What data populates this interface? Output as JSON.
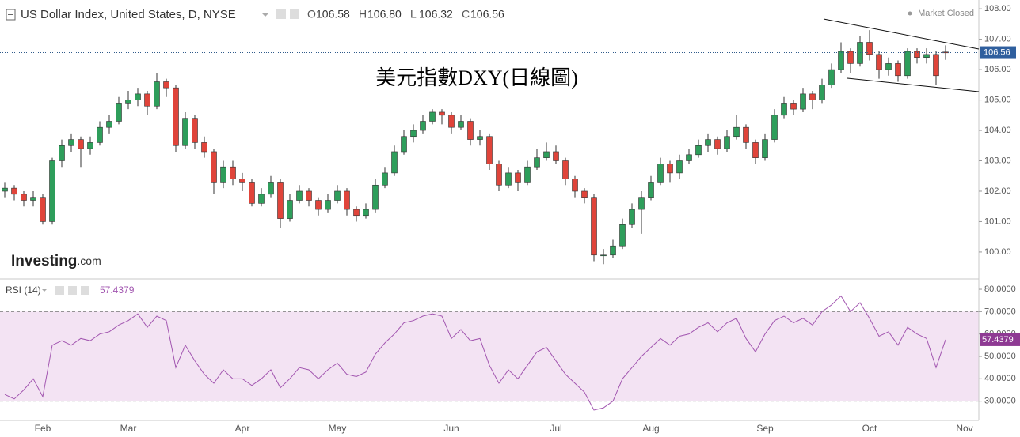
{
  "chart_data": [
    {
      "type": "candlestick",
      "title": "US Dollar Index, United States, D, NYSE",
      "ohlc_labels": [
        "O",
        "H",
        "L",
        "C"
      ],
      "ohlc_values": [
        "106.58",
        "106.80",
        "106.32",
        "106.56"
      ],
      "status": "Market Closed",
      "logo": [
        "Investing",
        ".com"
      ],
      "annotation": "美元指數DXY(日線圖)",
      "up_color": "#2e9e5b",
      "down_color": "#e0443a",
      "ylim": [
        99.14,
        108.29
      ],
      "yticks": [
        {
          "value": 100,
          "label": "100.00"
        },
        {
          "value": 101,
          "label": "101.00"
        },
        {
          "value": 102,
          "label": "102.00"
        },
        {
          "value": 103,
          "label": "103.00"
        },
        {
          "value": 104,
          "label": "104.00"
        },
        {
          "value": 105,
          "label": "105.00"
        },
        {
          "value": 106,
          "label": "106.00"
        },
        {
          "value": 107,
          "label": "107.00"
        },
        {
          "value": 108,
          "label": "108.00"
        }
      ],
      "last_price": {
        "value": 106.56,
        "label": "106.56"
      },
      "open": [
        102.0,
        102.1,
        101.9,
        101.7,
        101.8,
        101.0,
        103.0,
        103.5,
        103.7,
        103.4,
        103.6,
        104.1,
        104.3,
        104.9,
        105.0,
        105.2,
        104.8,
        105.6,
        105.4,
        103.5,
        104.4,
        103.6,
        103.3,
        102.3,
        102.8,
        102.4,
        102.3,
        101.6,
        101.9,
        102.3,
        101.1,
        101.7,
        102.0,
        101.7,
        101.4,
        101.7,
        102.0,
        101.4,
        101.2,
        101.4,
        102.2,
        102.6,
        103.3,
        103.8,
        104.0,
        104.3,
        104.6,
        104.5,
        104.1,
        104.3,
        103.7,
        103.8,
        102.9,
        102.2,
        102.6,
        102.3,
        102.8,
        103.1,
        103.3,
        103.0,
        102.4,
        102.0,
        101.8,
        99.9,
        99.9,
        100.2,
        100.9,
        101.4,
        101.8,
        102.3,
        102.9,
        102.6,
        103.0,
        103.2,
        103.5,
        103.7,
        103.4,
        103.8,
        104.1,
        103.6,
        103.1,
        103.7,
        104.5,
        104.9,
        104.7,
        105.2,
        105.0,
        105.5,
        106.0,
        106.6,
        106.2,
        106.9,
        106.5,
        106.0,
        106.2,
        105.8,
        106.6,
        106.4,
        106.5,
        106.58,
        null,
        null,
        null
      ],
      "high": [
        102.3,
        102.2,
        102.0,
        102.0,
        101.9,
        103.1,
        103.7,
        103.9,
        103.8,
        103.8,
        104.3,
        104.5,
        105.1,
        105.3,
        105.4,
        105.3,
        105.9,
        105.7,
        105.5,
        104.6,
        104.5,
        103.8,
        103.4,
        103.0,
        103.0,
        102.6,
        102.4,
        102.1,
        102.5,
        102.4,
        101.9,
        102.2,
        102.1,
        101.8,
        101.9,
        102.2,
        102.1,
        101.5,
        101.6,
        102.4,
        102.8,
        103.5,
        104.0,
        104.2,
        104.5,
        104.7,
        104.7,
        104.6,
        104.5,
        104.4,
        104.0,
        103.9,
        103.0,
        102.8,
        102.7,
        103.0,
        103.4,
        103.6,
        103.5,
        103.1,
        102.5,
        102.1,
        101.9,
        100.1,
        100.4,
        101.1,
        101.6,
        102.0,
        102.5,
        103.1,
        103.0,
        103.2,
        103.4,
        103.7,
        103.9,
        103.8,
        104.0,
        104.5,
        104.2,
        103.7,
        103.9,
        104.7,
        105.1,
        105.0,
        105.4,
        105.3,
        105.7,
        106.2,
        106.9,
        106.7,
        107.1,
        107.3,
        106.6,
        106.4,
        106.3,
        106.7,
        106.7,
        106.7,
        106.6,
        106.8,
        null,
        null,
        null
      ],
      "low": [
        101.8,
        101.7,
        101.5,
        101.5,
        100.9,
        100.9,
        102.8,
        103.3,
        102.8,
        103.2,
        103.5,
        103.9,
        104.2,
        104.7,
        104.8,
        104.5,
        104.7,
        105.1,
        103.3,
        103.4,
        103.4,
        103.1,
        101.9,
        102.1,
        102.2,
        102.0,
        101.5,
        101.5,
        101.8,
        100.8,
        101.0,
        101.6,
        101.5,
        101.2,
        101.3,
        101.6,
        101.2,
        101.0,
        101.1,
        101.3,
        102.1,
        102.5,
        103.2,
        103.6,
        103.9,
        104.2,
        104.2,
        103.9,
        104.0,
        103.5,
        103.5,
        102.7,
        102.0,
        102.1,
        102.0,
        102.2,
        102.7,
        103.0,
        102.9,
        102.2,
        101.8,
        101.6,
        99.7,
        99.6,
        99.8,
        100.1,
        100.8,
        100.6,
        101.7,
        102.2,
        102.3,
        102.4,
        102.9,
        103.1,
        103.3,
        103.2,
        103.3,
        103.7,
        103.4,
        102.9,
        103.0,
        103.6,
        104.4,
        104.5,
        104.6,
        104.7,
        104.9,
        105.4,
        105.9,
        105.9,
        106.1,
        106.3,
        105.7,
        105.8,
        105.6,
        105.7,
        106.2,
        106.2,
        105.5,
        106.32,
        null,
        null,
        null
      ],
      "close": [
        102.1,
        101.9,
        101.7,
        101.8,
        101.0,
        103.0,
        103.5,
        103.7,
        103.4,
        103.6,
        104.1,
        104.3,
        104.9,
        105.0,
        105.2,
        104.8,
        105.6,
        105.4,
        103.5,
        104.4,
        103.6,
        103.3,
        102.3,
        102.8,
        102.4,
        102.3,
        101.6,
        101.9,
        102.3,
        101.1,
        101.7,
        102.0,
        101.7,
        101.4,
        101.7,
        102.0,
        101.4,
        101.2,
        101.4,
        102.2,
        102.6,
        103.3,
        103.8,
        104.0,
        104.3,
        104.6,
        104.5,
        104.1,
        104.3,
        103.7,
        103.8,
        102.9,
        102.2,
        102.6,
        102.3,
        102.8,
        103.1,
        103.3,
        103.0,
        102.4,
        102.0,
        101.8,
        99.9,
        99.9,
        100.2,
        100.9,
        101.4,
        101.8,
        102.3,
        102.9,
        102.6,
        103.0,
        103.2,
        103.5,
        103.7,
        103.4,
        103.8,
        104.1,
        103.6,
        103.1,
        103.7,
        104.5,
        104.9,
        104.7,
        105.2,
        105.0,
        105.5,
        106.0,
        106.6,
        106.2,
        106.9,
        106.5,
        106.0,
        106.2,
        105.8,
        106.6,
        106.4,
        106.5,
        105.8,
        106.56,
        null,
        null,
        null
      ]
    },
    {
      "type": "line",
      "title": "RSI (14)",
      "last_value": 57.4379,
      "color": "#a256b0",
      "band_color": "#f3e3f3",
      "bands": [
        30,
        70
      ],
      "ylim": [
        21.4,
        84.6
      ],
      "yticks": [
        {
          "value": 30,
          "label": "30.0000"
        },
        {
          "value": 40,
          "label": "40.0000"
        },
        {
          "value": 50,
          "label": "50.0000"
        },
        {
          "value": 60,
          "label": "60.0000"
        },
        {
          "value": 70,
          "label": "70.0000"
        },
        {
          "value": 80,
          "label": "80.0000"
        }
      ],
      "categories": [
        null,
        null,
        null,
        null,
        "Feb",
        null,
        null,
        null,
        null,
        null,
        null,
        null,
        null,
        "Mar",
        null,
        null,
        null,
        null,
        null,
        null,
        null,
        null,
        null,
        null,
        null,
        "Apr",
        null,
        null,
        null,
        null,
        null,
        null,
        null,
        null,
        null,
        "May",
        null,
        null,
        null,
        null,
        null,
        null,
        null,
        null,
        null,
        null,
        null,
        "Jun",
        null,
        null,
        null,
        null,
        null,
        null,
        null,
        null,
        null,
        null,
        "Jul",
        null,
        null,
        null,
        null,
        null,
        null,
        null,
        null,
        null,
        "Aug",
        null,
        null,
        null,
        null,
        null,
        null,
        null,
        null,
        null,
        null,
        null,
        "Sep",
        null,
        null,
        null,
        null,
        null,
        null,
        null,
        null,
        null,
        null,
        "Oct",
        null,
        null,
        null,
        null,
        null,
        null,
        null,
        null,
        null,
        "Nov",
        null
      ],
      "values": [
        33,
        31,
        35,
        40,
        32,
        55,
        57,
        55,
        58,
        57,
        60,
        61,
        64,
        66,
        69,
        63,
        68,
        66,
        45,
        55,
        48,
        42,
        38,
        44,
        40,
        40,
        37,
        40,
        44,
        36,
        40,
        45,
        44,
        40,
        44,
        47,
        42,
        41,
        43,
        51,
        56,
        60,
        65,
        66,
        68,
        69,
        68,
        58,
        62,
        57,
        58,
        46,
        38,
        44,
        40,
        46,
        52,
        54,
        48,
        42,
        38,
        34,
        26,
        27,
        30,
        40,
        45,
        50,
        54,
        58,
        55,
        59,
        60,
        63,
        65,
        61,
        65,
        67,
        58,
        52,
        60,
        66,
        68,
        65,
        67,
        64,
        70,
        73,
        77,
        70,
        74,
        67,
        59,
        61,
        55,
        63,
        60,
        58,
        45,
        57.4379,
        null,
        null,
        null
      ]
    }
  ]
}
